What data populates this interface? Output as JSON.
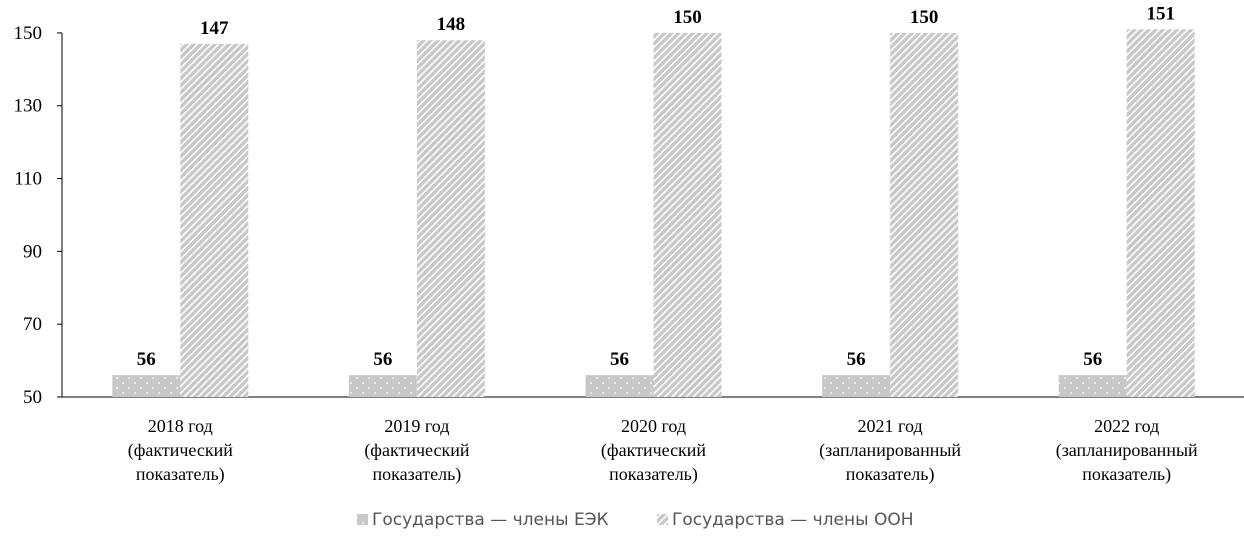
{
  "chart_data": {
    "type": "bar",
    "categories": [
      [
        "2018 год",
        "(фактический",
        "показатель)"
      ],
      [
        "2019 год",
        "(фактический",
        "показатель)"
      ],
      [
        "2020 год",
        "(фактический",
        "показатель)"
      ],
      [
        "2021 год",
        "(запланированный",
        "показатель)"
      ],
      [
        "2022 год",
        "(запланированный",
        "показатель)"
      ]
    ],
    "series": [
      {
        "name": "Государства — члены ЕЭК",
        "values": [
          56,
          56,
          56,
          56,
          56
        ],
        "color": "#c8c8c8",
        "pattern": "dots"
      },
      {
        "name": "Государства — члены ООН",
        "values": [
          147,
          148,
          150,
          150,
          151
        ],
        "color": "#c8c8c8",
        "pattern": "diagonal-stripes"
      }
    ],
    "yticks": [
      50,
      70,
      90,
      110,
      130,
      150
    ],
    "ylim": [
      50,
      153
    ],
    "legend_position": "bottom",
    "grid": false
  }
}
